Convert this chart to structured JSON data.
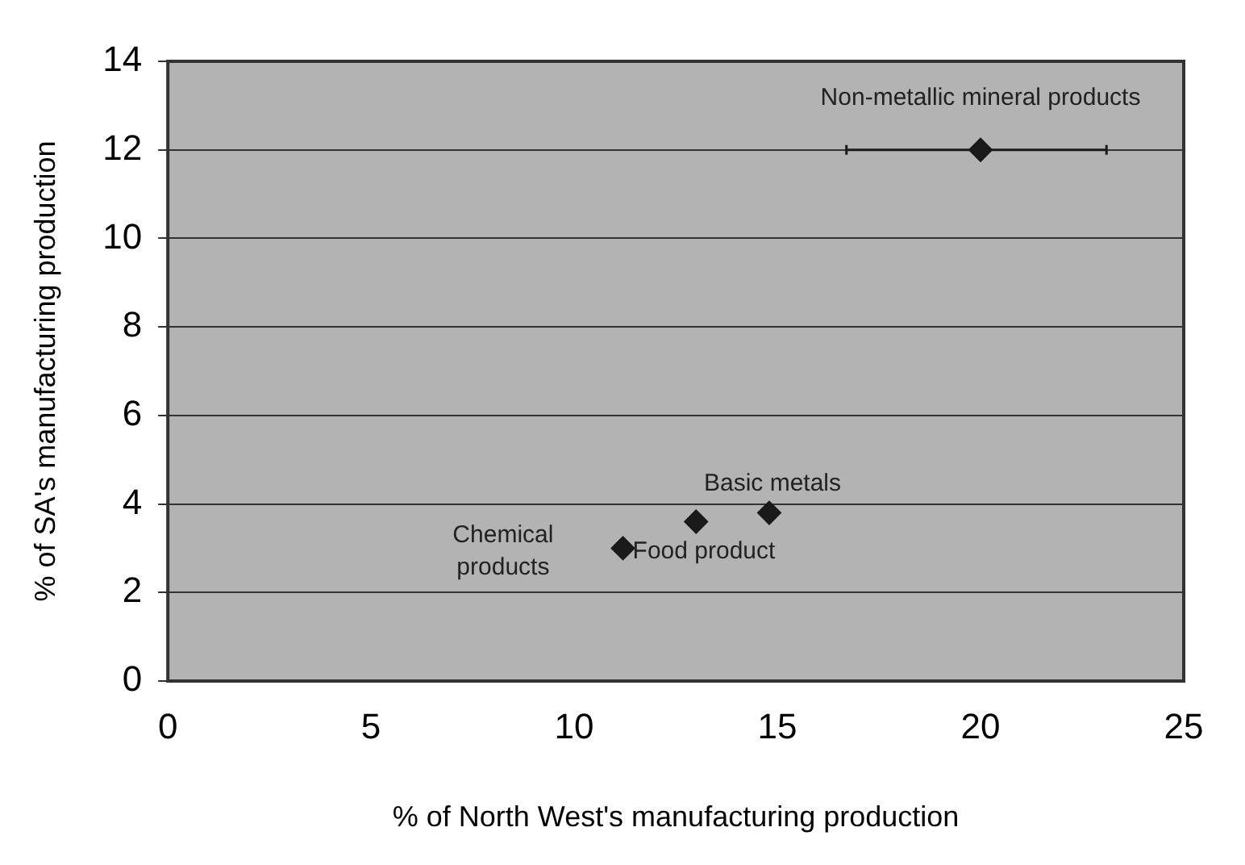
{
  "chart_data": {
    "type": "scatter",
    "xlabel": "% of North West's manufacturing production",
    "ylabel": "% of SA's manufacturing production",
    "x": [
      20,
      14.8,
      13,
      11.2
    ],
    "values": [
      12,
      3.8,
      3.6,
      3.0
    ],
    "color": "#1a1a1a",
    "xerrors": [
      [
        16.7,
        23.1
      ],
      null,
      null,
      null
    ],
    "xlim": [
      0,
      25
    ],
    "xticks": [
      0,
      5,
      10,
      15,
      20,
      25
    ],
    "ylim": [
      0,
      14
    ],
    "yticks": [
      0,
      2,
      4,
      6,
      8,
      10,
      12,
      14
    ],
    "grid": "y",
    "legend": false,
    "marker": "diamond",
    "annotations": [
      {
        "text": "Non-metallic mineral products",
        "x": 20,
        "y": 12
      },
      {
        "text": "Basic metals",
        "x": 14.8,
        "y": 3.8
      },
      {
        "text": "Food product",
        "x": 11.2,
        "y": 3.0
      },
      "Chemical products"
    ]
  }
}
